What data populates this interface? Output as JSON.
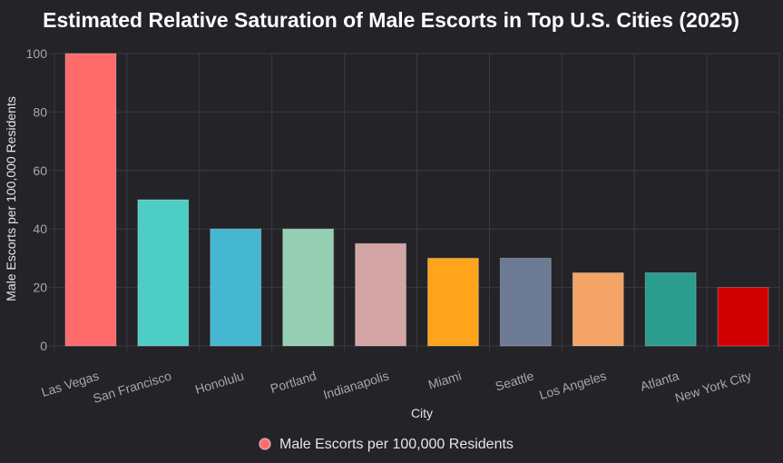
{
  "chart_data": {
    "type": "bar",
    "title": "Estimated Relative Saturation of Male Escorts in Top U.S. Cities (2025)",
    "xlabel": "City",
    "ylabel": "Male Escorts per 100,000 Residents",
    "categories": [
      "Las Vegas",
      "San Francisco",
      "Honolulu",
      "Portland",
      "Indianapolis",
      "Miami",
      "Seattle",
      "Los Angeles",
      "Atlanta",
      "New York City"
    ],
    "series": [
      {
        "name": "Male Escorts per 100,000 Residents",
        "values": [
          100,
          50,
          40,
          40,
          35,
          30,
          30,
          25,
          25,
          20
        ]
      }
    ],
    "bar_colors": [
      "#ff6b6b",
      "#4ecdc4",
      "#45b7d1",
      "#96ceb4",
      "#d4a5a5",
      "#ffa41b",
      "#6c7a94",
      "#f3a466",
      "#2a9d8f",
      "#d00000"
    ],
    "legend_color": "#ff6b6b",
    "yticks": [
      0,
      20,
      40,
      60,
      80,
      100
    ],
    "ylim": [
      0,
      100
    ],
    "grid": true,
    "legend_position": "bottom"
  }
}
